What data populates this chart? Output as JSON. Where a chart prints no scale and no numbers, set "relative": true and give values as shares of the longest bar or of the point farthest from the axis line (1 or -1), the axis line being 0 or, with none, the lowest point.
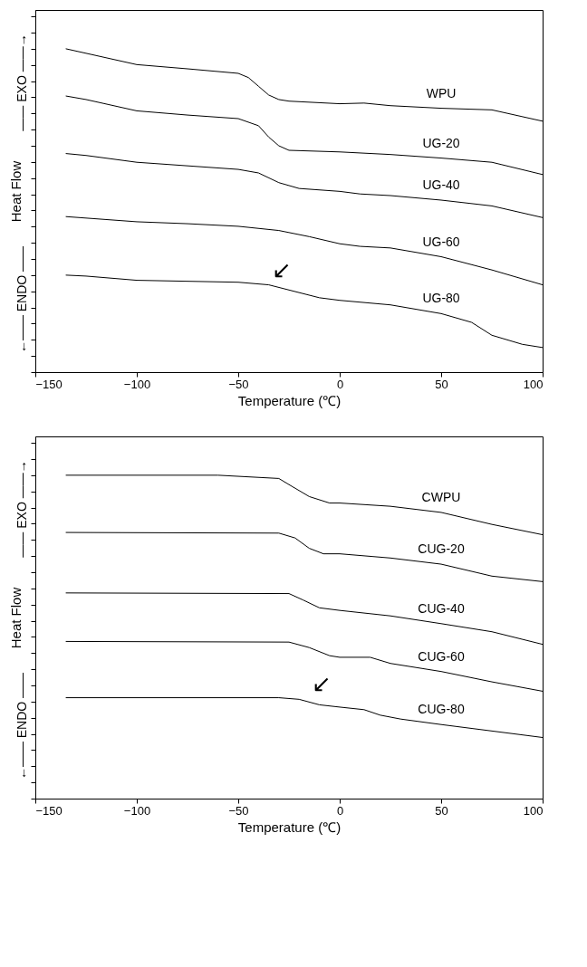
{
  "chart_data": [
    {
      "type": "line",
      "relative": true,
      "xlabel": "Temperature (℃)",
      "ylabel": "Heat Flow",
      "xlim": [
        -150,
        100
      ],
      "xticks": [
        -150,
        -100,
        -50,
        0,
        50,
        100
      ],
      "tick_labels": "x",
      "grid": false,
      "legend": false,
      "marker": "none",
      "line_style": "solid",
      "annotations": [
        "—— EXO ——→",
        "←—— ENDO ——",
        {
          "text": "↙",
          "x": -35,
          "y": 0.27
        }
      ],
      "series": [
        {
          "name": "WPU",
          "color": "#000000",
          "x": [
            -135,
            -125,
            -100,
            -75,
            -50,
            -45,
            -40,
            -35,
            -30,
            -25,
            0,
            12,
            25,
            50,
            75,
            100
          ],
          "values": [
            1.0,
            0.986,
            0.951,
            0.938,
            0.924,
            0.911,
            0.884,
            0.857,
            0.843,
            0.838,
            0.83,
            0.832,
            0.824,
            0.816,
            0.811,
            0.776
          ]
        },
        {
          "name": "UG-20",
          "color": "#000000",
          "x": [
            -135,
            -125,
            -100,
            -75,
            -50,
            -40,
            -35,
            -30,
            -25,
            0,
            25,
            50,
            75,
            100
          ],
          "values": [
            0.854,
            0.843,
            0.808,
            0.795,
            0.784,
            0.762,
            0.727,
            0.7,
            0.686,
            0.681,
            0.673,
            0.662,
            0.649,
            0.611
          ]
        },
        {
          "name": "UG-40",
          "color": "#000000",
          "x": [
            -135,
            -125,
            -100,
            -75,
            -50,
            -40,
            -30,
            -20,
            0,
            10,
            25,
            50,
            75,
            100
          ],
          "values": [
            0.676,
            0.67,
            0.649,
            0.638,
            0.627,
            0.616,
            0.586,
            0.568,
            0.559,
            0.551,
            0.546,
            0.532,
            0.514,
            0.478
          ]
        },
        {
          "name": "UG-60",
          "color": "#000000",
          "x": [
            -135,
            -100,
            -75,
            -50,
            -30,
            -15,
            0,
            10,
            25,
            50,
            75,
            100
          ],
          "values": [
            0.481,
            0.465,
            0.459,
            0.451,
            0.438,
            0.419,
            0.397,
            0.389,
            0.384,
            0.357,
            0.316,
            0.27
          ]
        },
        {
          "name": "UG-80",
          "color": "#000000",
          "x": [
            -135,
            -125,
            -100,
            -75,
            -50,
            -35,
            -25,
            -10,
            0,
            25,
            50,
            65,
            75,
            90,
            100
          ],
          "values": [
            0.3,
            0.297,
            0.284,
            0.281,
            0.278,
            0.27,
            0.254,
            0.23,
            0.222,
            0.208,
            0.181,
            0.154,
            0.114,
            0.086,
            0.076
          ]
        }
      ]
    },
    {
      "type": "line",
      "relative": true,
      "xlabel": "Temperature (℃)",
      "ylabel": "Heat Flow",
      "xlim": [
        -150,
        100
      ],
      "xticks": [
        -150,
        -100,
        -50,
        0,
        50,
        100
      ],
      "tick_labels": "x",
      "grid": false,
      "legend": false,
      "marker": "none",
      "line_style": "solid",
      "annotations": [
        "—— EXO ——→",
        "←—— ENDO ——",
        {
          "text": "↙",
          "x": -15,
          "y": 0.307
        }
      ],
      "series": [
        {
          "name": "CWPU",
          "color": "#000000",
          "x": [
            -135,
            -100,
            -60,
            -30,
            -25,
            -15,
            -5,
            0,
            25,
            50,
            75,
            100
          ],
          "values": [
            1.0,
            1.0,
            1.0,
            0.99,
            0.971,
            0.934,
            0.914,
            0.914,
            0.904,
            0.885,
            0.848,
            0.816
          ]
        },
        {
          "name": "CUG-20",
          "color": "#000000",
          "x": [
            -135,
            -30,
            -22,
            -15,
            -8,
            0,
            25,
            50,
            75,
            100
          ],
          "values": [
            0.823,
            0.821,
            0.806,
            0.774,
            0.757,
            0.757,
            0.744,
            0.725,
            0.688,
            0.671
          ]
        },
        {
          "name": "CUG-40",
          "color": "#000000",
          "x": [
            -135,
            -25,
            -18,
            -10,
            0,
            25,
            50,
            75,
            100
          ],
          "values": [
            0.636,
            0.634,
            0.614,
            0.59,
            0.582,
            0.565,
            0.541,
            0.516,
            0.477
          ]
        },
        {
          "name": "CUG-60",
          "color": "#000000",
          "x": [
            -135,
            -25,
            -15,
            -5,
            0,
            15,
            25,
            50,
            75,
            100
          ],
          "values": [
            0.486,
            0.484,
            0.467,
            0.442,
            0.437,
            0.437,
            0.418,
            0.393,
            0.361,
            0.332
          ]
        },
        {
          "name": "CUG-80",
          "color": "#000000",
          "x": [
            -135,
            -30,
            -20,
            -10,
            0,
            12,
            20,
            30,
            50,
            75,
            100
          ],
          "values": [
            0.312,
            0.312,
            0.307,
            0.29,
            0.283,
            0.275,
            0.258,
            0.246,
            0.229,
            0.209,
            0.189
          ]
        }
      ]
    }
  ]
}
